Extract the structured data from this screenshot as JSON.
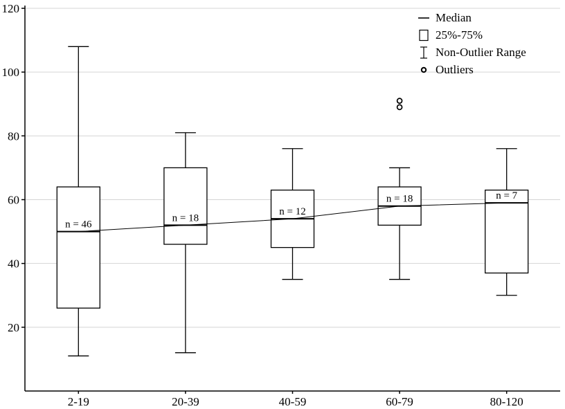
{
  "chart_data": {
    "type": "boxplot",
    "title": "",
    "xlabel": "",
    "ylabel": "",
    "categories": [
      "2-19",
      "20-39",
      "40-59",
      "60-79",
      "80-120"
    ],
    "series": [
      {
        "category": "2-19",
        "n_label": "n = 46",
        "median": 50,
        "q1": 26,
        "q3": 64,
        "whisker_low": 11,
        "whisker_high": 108,
        "outliers": []
      },
      {
        "category": "20-39",
        "n_label": "n = 18",
        "median": 52,
        "q1": 46,
        "q3": 70,
        "whisker_low": 12,
        "whisker_high": 81,
        "outliers": []
      },
      {
        "category": "40-59",
        "n_label": "n = 12",
        "median": 54,
        "q1": 45,
        "q3": 63,
        "whisker_low": 35,
        "whisker_high": 76,
        "outliers": []
      },
      {
        "category": "60-79",
        "n_label": "n = 18",
        "median": 58,
        "q1": 52,
        "q3": 64,
        "whisker_low": 35,
        "whisker_high": 70,
        "outliers": [
          89,
          91
        ]
      },
      {
        "category": "80-120",
        "n_label": "n = 7",
        "median": 59,
        "q1": 37,
        "q3": 63,
        "whisker_low": 30,
        "whisker_high": 76,
        "outliers": []
      }
    ],
    "median_trend_line": [
      50,
      52,
      54,
      58,
      59
    ],
    "ylim": [
      0,
      120
    ],
    "ytick_labels": [
      120,
      100,
      80,
      60,
      40,
      20
    ],
    "grid": "horizontal",
    "legend_position": "top-right",
    "legend": [
      {
        "icon": "median-line-icon",
        "label": "Median"
      },
      {
        "icon": "box-range-icon",
        "label": "25%-75%"
      },
      {
        "icon": "whisker-range-icon",
        "label": "Non-Outlier Range"
      },
      {
        "icon": "outlier-point-icon",
        "label": "Outliers"
      }
    ],
    "colors": {
      "stroke": "#000000",
      "grid": "#d4d4d4",
      "box_fill": "#ffffff",
      "background": "#ffffff"
    }
  }
}
